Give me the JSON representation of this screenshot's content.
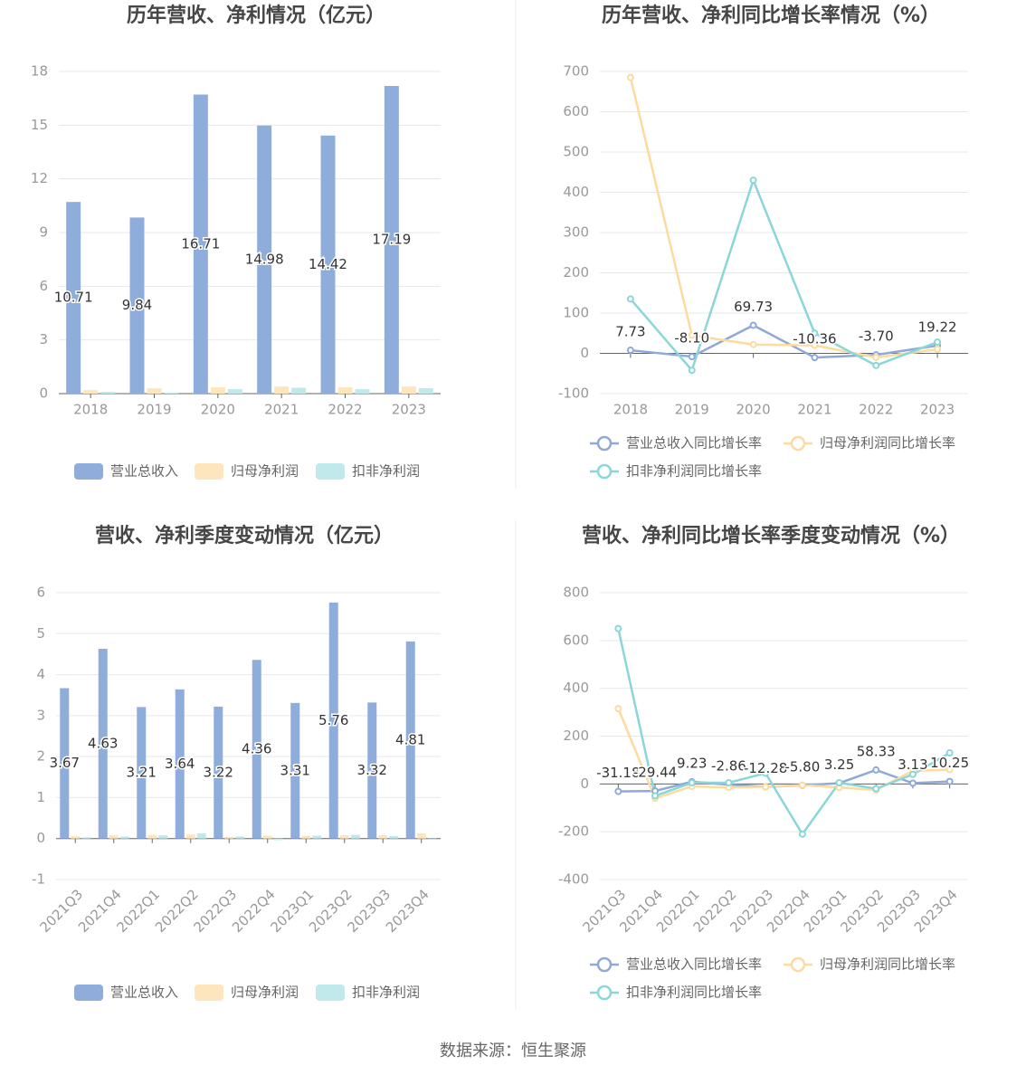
{
  "chart_data": [
    {
      "type": "bar",
      "title": "历年营收、净利情况（亿元）",
      "categories": [
        "2018",
        "2019",
        "2020",
        "2021",
        "2022",
        "2023"
      ],
      "series": [
        {
          "name": "营业总收入",
          "color": "#8fadda",
          "data_labels": true,
          "values": [
            10.71,
            9.84,
            16.71,
            14.98,
            14.42,
            17.19
          ]
        },
        {
          "name": "归母净利润",
          "color": "#fde5bd",
          "values": [
            0.2,
            0.3,
            0.35,
            0.4,
            0.35,
            0.4
          ]
        },
        {
          "name": "扣非净利润",
          "color": "#c0e9ec",
          "values": [
            0.1,
            0.05,
            0.25,
            0.33,
            0.25,
            0.3
          ]
        }
      ],
      "ylim": [
        0,
        18
      ],
      "yticks": [
        0,
        3,
        6,
        9,
        12,
        15,
        18
      ],
      "grid": true
    },
    {
      "type": "line",
      "title": "历年营收、净利同比增长率情况（%）",
      "categories": [
        "2018",
        "2019",
        "2020",
        "2021",
        "2022",
        "2023"
      ],
      "series": [
        {
          "name": "营业总收入同比增长率",
          "color": "#8fa9d8",
          "data_labels": true,
          "values": [
            7.73,
            -8.1,
            69.73,
            -10.36,
            -3.7,
            19.22
          ],
          "value_labels": [
            "7.73",
            "-8.10",
            "69.73",
            "-10.36",
            "-3.70",
            "19.22"
          ]
        },
        {
          "name": "归母净利润同比增长率",
          "color": "#fddb9e",
          "values": [
            685,
            45,
            22,
            20,
            -10,
            10
          ]
        },
        {
          "name": "扣非净利润同比增长率",
          "color": "#8ad6d9",
          "values": [
            135,
            -42,
            430,
            50,
            -30,
            28
          ]
        }
      ],
      "ylim": [
        -100,
        700
      ],
      "yticks": [
        -100,
        0,
        100,
        200,
        300,
        400,
        500,
        600,
        700
      ],
      "grid": true
    },
    {
      "type": "bar",
      "title": "营收、净利季度变动情况（亿元）",
      "categories": [
        "2021Q3",
        "2021Q4",
        "2022Q1",
        "2022Q2",
        "2022Q3",
        "2022Q4",
        "2023Q1",
        "2023Q2",
        "2023Q3",
        "2023Q4"
      ],
      "series": [
        {
          "name": "营业总收入",
          "color": "#8fadda",
          "data_labels": true,
          "values": [
            3.67,
            4.63,
            3.21,
            3.64,
            3.22,
            4.36,
            3.31,
            5.76,
            3.32,
            4.81
          ]
        },
        {
          "name": "归母净利润",
          "color": "#fde5bd",
          "values": [
            0.06,
            0.08,
            0.09,
            0.1,
            0.04,
            0.07,
            0.07,
            0.08,
            0.08,
            0.13
          ]
        },
        {
          "name": "扣非净利润",
          "color": "#c0e9ec",
          "values": [
            0.03,
            0.05,
            0.08,
            0.13,
            0.05,
            -0.04,
            0.07,
            0.09,
            0.06,
            0.01
          ]
        }
      ],
      "ylim": [
        -1,
        6
      ],
      "yticks": [
        -1,
        0,
        1,
        2,
        3,
        4,
        5,
        6
      ],
      "grid": true
    },
    {
      "type": "line",
      "title": "营收、净利同比增长率季度变动情况（%）",
      "categories": [
        "2021Q3",
        "2021Q4",
        "2022Q1",
        "2022Q2",
        "2022Q3",
        "2022Q4",
        "2023Q1",
        "2023Q2",
        "2023Q3",
        "2023Q4"
      ],
      "series": [
        {
          "name": "营业总收入同比增长率",
          "color": "#8fa9d8",
          "data_labels": true,
          "values": [
            -31.18,
            -29.44,
            9.23,
            -2.86,
            -12.28,
            -5.8,
            3.25,
            58.33,
            3.13,
            10.25
          ],
          "value_labels": [
            "-31.18",
            "-29.44",
            "9.23",
            "-2.86",
            "-12.28",
            "-5.80",
            "3.25",
            "58.33",
            "3.13",
            "10.25"
          ]
        },
        {
          "name": "归母净利润同比增长率",
          "color": "#fddb9e",
          "values": [
            315,
            -60,
            -10,
            -15,
            -12,
            -5,
            -15,
            -25,
            55,
            60
          ]
        },
        {
          "name": "扣非净利润同比增长率",
          "color": "#8ad6d9",
          "values": [
            650,
            -50,
            5,
            5,
            45,
            -210,
            5,
            -20,
            40,
            130
          ]
        }
      ],
      "ylim": [
        -400,
        800
      ],
      "yticks": [
        -400,
        -200,
        0,
        200,
        400,
        600,
        800
      ],
      "grid": true
    }
  ],
  "footer": "数据来源：恒生聚源"
}
